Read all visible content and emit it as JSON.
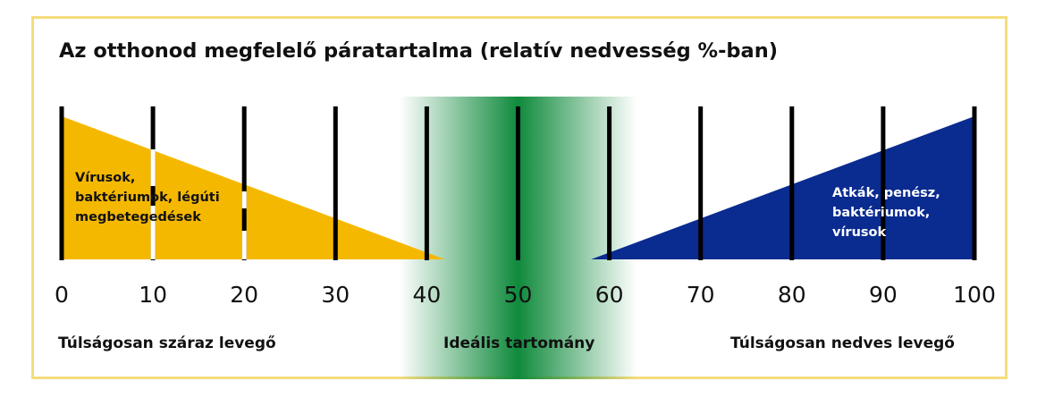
{
  "title": "Az otthonod megfelelő páratartalma (relatív nedvesség %-ban)",
  "scale": {
    "ticks": [
      "0",
      "10",
      "20",
      "30",
      "40",
      "50",
      "60",
      "70",
      "80",
      "90",
      "100"
    ],
    "min": 0,
    "max": 100
  },
  "dry_zone": {
    "lines": [
      "Vírusok,",
      "baktériumok, légúti",
      "megbetegedések"
    ],
    "from": 0,
    "to": 42,
    "color": "#f5b800"
  },
  "humid_zone": {
    "lines": [
      "Atkák, penész,",
      "baktériumok,",
      "vírusok"
    ],
    "from": 58,
    "to": 100,
    "color": "#0a2b8f"
  },
  "ideal_zone": {
    "from": 37,
    "to": 63,
    "color": "#0f8a3c"
  },
  "captions": {
    "dry": "Túlságosan száraz levegő",
    "ideal": "Ideális tartomány",
    "humid": "Túlságosan nedves levegő"
  }
}
